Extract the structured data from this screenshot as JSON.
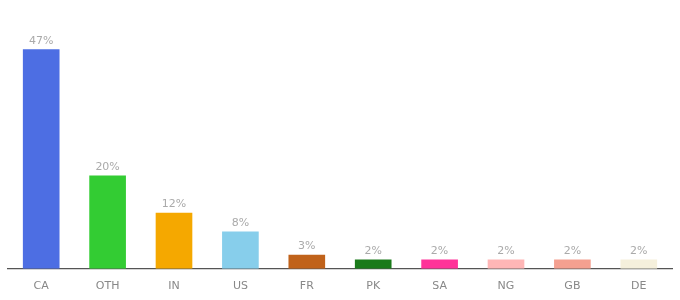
{
  "chart_data": {
    "type": "bar",
    "categories": [
      "CA",
      "OTH",
      "IN",
      "US",
      "FR",
      "PK",
      "SA",
      "NG",
      "GB",
      "DE"
    ],
    "values": [
      47,
      20,
      12,
      8,
      3,
      2,
      2,
      2,
      2,
      2
    ],
    "value_labels": [
      "47%",
      "20%",
      "12%",
      "8%",
      "3%",
      "2%",
      "2%",
      "2%",
      "2%",
      "2%"
    ],
    "colors": [
      "#4d6ee3",
      "#33cc33",
      "#f5a800",
      "#87ceeb",
      "#c0621a",
      "#1a7a1a",
      "#ff3399",
      "#ffb6b6",
      "#f4a090",
      "#f5f0dc"
    ],
    "ylim": [
      0,
      55
    ],
    "grid": false,
    "data_labels": true,
    "tick_labels": "x"
  }
}
